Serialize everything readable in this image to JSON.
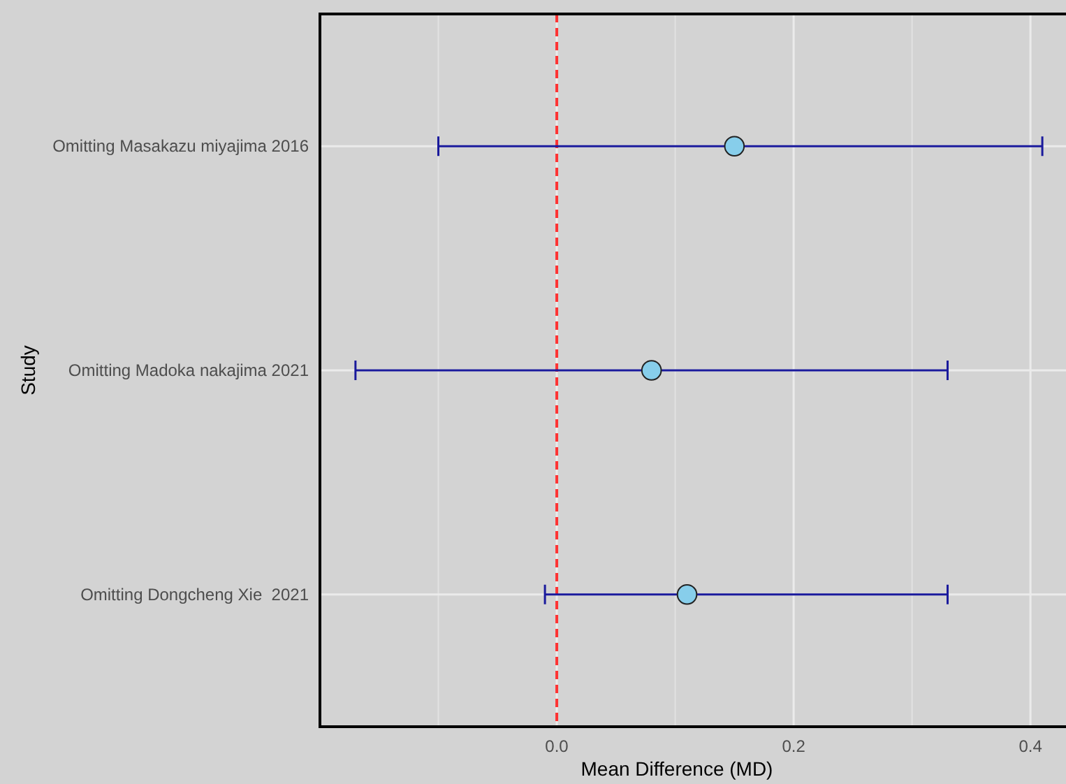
{
  "chart_data": {
    "type": "scatter",
    "orientation": "horizontal",
    "xlabel": "Mean Difference (MD)",
    "ylabel": "Study",
    "categories": [
      "Omitting Masakazu miyajima 2016",
      "Omitting Madoka nakajima 2021",
      "Omitting Dongcheng Xie  2021"
    ],
    "series": [
      {
        "color": "#87ceeb",
        "values": [
          0.15,
          0.08,
          0.11
        ],
        "errors": [
          [
            -0.1,
            0.41
          ],
          [
            -0.17,
            0.33
          ],
          [
            -0.01,
            0.33
          ]
        ]
      }
    ],
    "xlim": [
      -0.2,
      0.43
    ],
    "xticks": [
      {
        "value": -0.1,
        "label": null
      },
      {
        "value": 0,
        "label": "0.0"
      },
      {
        "value": 0.1,
        "label": null
      },
      {
        "value": 0.2,
        "label": "0.2"
      },
      {
        "value": 0.3,
        "label": null
      },
      {
        "value": 0.4,
        "label": "0.4"
      }
    ],
    "ref_lines": [
      {
        "axis": "x",
        "value": 0,
        "color": "#ff3333",
        "line_style": "dashed"
      }
    ],
    "grid": true,
    "marker": "circle"
  }
}
